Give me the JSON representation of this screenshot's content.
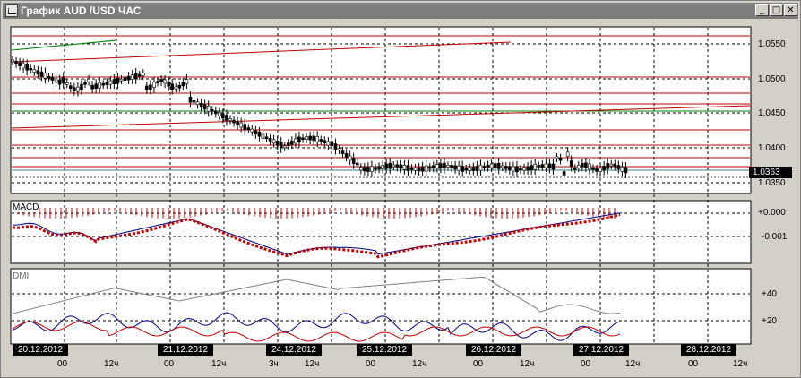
{
  "window": {
    "title": "График AUD /USD ЧАС",
    "minimize_label": "_",
    "maximize_label": "□",
    "close_label": "✕"
  },
  "price_axis": {
    "ticks": [
      "1.0550",
      "1.0500",
      "1.0450",
      "1.0400",
      "1.0350"
    ],
    "current_price": "1.0363"
  },
  "macd": {
    "label": "MACD",
    "ticks": [
      "+0.000",
      "-0.001"
    ]
  },
  "dmi": {
    "label": "DMI",
    "ticks": [
      "+40",
      "+20"
    ]
  },
  "time_axis": {
    "dates": [
      "20.12.2012",
      "21.12.2012",
      "24.12.2012",
      "25.12.2012",
      "26.12.2012",
      "27.12.2012",
      "28.12.2012"
    ],
    "hours": [
      "00",
      "12ч",
      "00",
      "12ч",
      "3ч",
      "12ч",
      "00",
      "12ч",
      "00",
      "12ч",
      "00",
      "12ч",
      "00",
      "12ч"
    ]
  },
  "colors": {
    "grid": "#000000",
    "trendline_red": "#c00000",
    "trendline_green": "#008000",
    "candle": "#000000",
    "macd_line": "#000080",
    "signal_line": "#c00000",
    "dmi_plus": "#000080",
    "dmi_minus": "#c00000",
    "adx": "#808080"
  }
}
